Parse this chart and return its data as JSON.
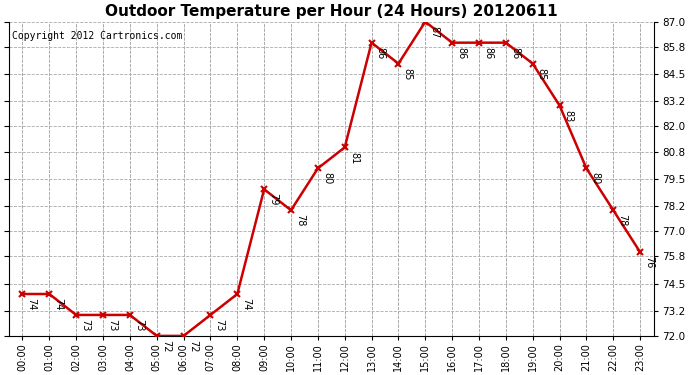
{
  "title": "Outdoor Temperature per Hour (24 Hours) 20120611",
  "copyright_text": "Copyright 2012 Cartronics.com",
  "hours": [
    0,
    1,
    2,
    3,
    4,
    5,
    6,
    7,
    8,
    9,
    10,
    11,
    12,
    13,
    14,
    15,
    16,
    17,
    18,
    19,
    20,
    21,
    22,
    23
  ],
  "hour_labels": [
    "00:00",
    "01:00",
    "02:00",
    "03:00",
    "04:00",
    "05:00",
    "06:00",
    "07:00",
    "08:00",
    "09:00",
    "10:00",
    "11:00",
    "12:00",
    "13:00",
    "14:00",
    "15:00",
    "16:00",
    "17:00",
    "18:00",
    "19:00",
    "20:00",
    "21:00",
    "22:00",
    "23:00"
  ],
  "temps": [
    74,
    74,
    73,
    73,
    73,
    72,
    72,
    73,
    74,
    79,
    78,
    80,
    81,
    86,
    85,
    87,
    86,
    86,
    86,
    85,
    83,
    80,
    78,
    76
  ],
  "line_color": "#cc0000",
  "marker": "x",
  "marker_color": "#cc0000",
  "marker_size": 5,
  "marker_linewidth": 1.5,
  "line_width": 1.8,
  "ylim_min": 72.0,
  "ylim_max": 87.0,
  "yticks": [
    72.0,
    73.2,
    74.5,
    75.8,
    77.0,
    78.2,
    79.5,
    80.8,
    82.0,
    83.2,
    84.5,
    85.8,
    87.0
  ],
  "grid_color": "#aaaaaa",
  "background_color": "#ffffff",
  "annotation_fontsize": 7,
  "title_fontsize": 11,
  "copyright_fontsize": 7,
  "tick_fontsize": 7,
  "ytick_fontsize": 7.5
}
